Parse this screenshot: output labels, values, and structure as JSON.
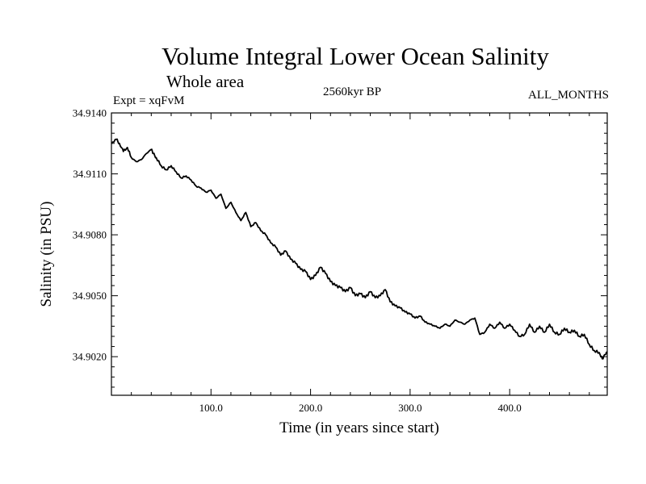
{
  "chart_data": {
    "type": "line",
    "title": "Volume Integral Lower Ocean Salinity",
    "subtitle": "Whole area",
    "experiment": "Expt = xqFvM",
    "center_label": "2560kyr BP",
    "right_label": "ALL_MONTHS",
    "xlabel": "Time (in years since start)",
    "ylabel": "Salinity (in PSU)",
    "xlim": [
      0,
      498
    ],
    "ylim": [
      34.9001,
      34.914
    ],
    "x_ticks": [
      100,
      200,
      300,
      400
    ],
    "x_tick_labels": [
      "100.0",
      "200.0",
      "300.0",
      "400.0"
    ],
    "y_ticks": [
      34.902,
      34.905,
      34.908,
      34.911,
      34.914
    ],
    "y_tick_labels": [
      "34.9020",
      "34.9050",
      "34.9080",
      "34.9110",
      "34.9140"
    ],
    "series": [
      {
        "name": "Salinity",
        "x": [
          0,
          5,
          8,
          12,
          16,
          20,
          25,
          30,
          35,
          40,
          42,
          45,
          50,
          55,
          60,
          65,
          70,
          75,
          80,
          85,
          90,
          95,
          100,
          105,
          110,
          115,
          120,
          125,
          130,
          135,
          140,
          145,
          150,
          155,
          160,
          165,
          170,
          175,
          180,
          185,
          190,
          195,
          200,
          205,
          210,
          215,
          220,
          225,
          230,
          235,
          240,
          245,
          250,
          255,
          260,
          265,
          270,
          275,
          280,
          285,
          290,
          295,
          300,
          305,
          310,
          315,
          320,
          325,
          330,
          335,
          340,
          345,
          350,
          355,
          360,
          365,
          370,
          375,
          380,
          385,
          390,
          395,
          400,
          405,
          410,
          415,
          420,
          425,
          430,
          435,
          440,
          445,
          450,
          455,
          460,
          465,
          470,
          475,
          480,
          485,
          490,
          493,
          496,
          498
        ],
        "y": [
          34.9125,
          34.9127,
          34.9125,
          34.9121,
          34.9123,
          34.9118,
          34.9116,
          34.9117,
          34.912,
          34.9122,
          34.912,
          34.9118,
          34.9114,
          34.9112,
          34.9114,
          34.9111,
          34.9108,
          34.9109,
          34.9107,
          34.9104,
          34.9103,
          34.9101,
          34.9102,
          34.9098,
          34.91,
          34.9093,
          34.9096,
          34.9091,
          34.9087,
          34.9091,
          34.9084,
          34.9086,
          34.9082,
          34.908,
          34.9076,
          34.9074,
          34.907,
          34.9072,
          34.9068,
          34.9066,
          34.9063,
          34.9062,
          34.9058,
          34.906,
          34.9064,
          34.9061,
          34.9057,
          34.9055,
          34.9054,
          34.9052,
          34.9054,
          34.905,
          34.9051,
          34.9049,
          34.9052,
          34.9049,
          34.905,
          34.9053,
          34.9047,
          34.9045,
          34.9044,
          34.9042,
          34.9041,
          34.9039,
          34.904,
          34.9037,
          34.9036,
          34.9035,
          34.9034,
          34.9036,
          34.9035,
          34.9038,
          34.9037,
          34.9036,
          34.9038,
          34.9039,
          34.9031,
          34.9032,
          34.9036,
          34.9034,
          34.9037,
          34.9034,
          34.9036,
          34.9033,
          34.903,
          34.9031,
          34.9036,
          34.9032,
          34.9035,
          34.9032,
          34.9036,
          34.9032,
          34.9031,
          34.9034,
          34.9032,
          34.9033,
          34.903,
          34.9031,
          34.9026,
          34.9023,
          34.9022,
          34.9019,
          34.9021,
          34.9022
        ]
      }
    ]
  }
}
